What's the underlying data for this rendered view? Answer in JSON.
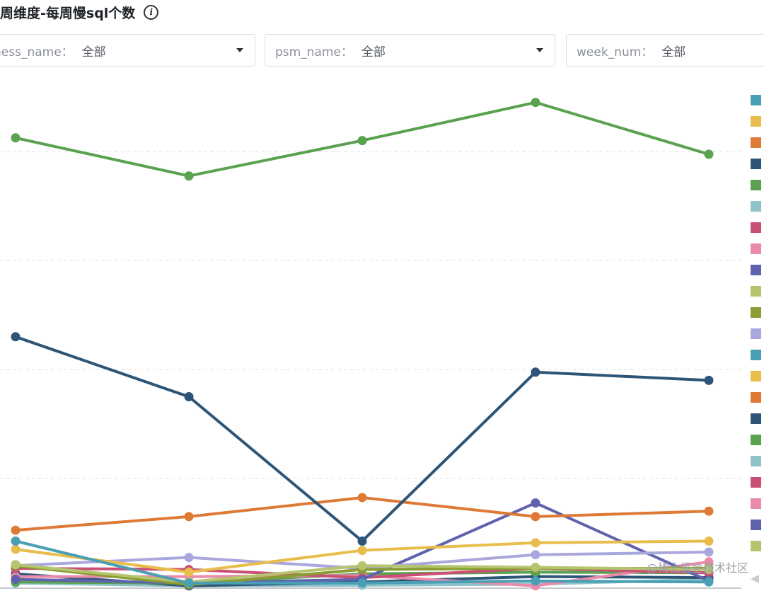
{
  "title": "周维度-每周慢sql个数",
  "info_icon": "info-icon",
  "filters": [
    {
      "label": "ness_name：",
      "value": "全部",
      "icon": "chevron-down-icon"
    },
    {
      "label": "psm_name：",
      "value": "全部",
      "icon": "chevron-down-icon"
    },
    {
      "label": "week_num：",
      "value": "全部"
    }
  ],
  "watermark": "@稀土掘金技术社区",
  "legend": {
    "colors": [
      "#4a9fb5",
      "#e9bd4c",
      "#de7a35",
      "#2d5577",
      "#5aa150",
      "#8fc3ca",
      "#c95074",
      "#e98aab",
      "#5f63ad",
      "#b5c46e",
      "#8a9c32",
      "#a9a7dd",
      "#4a9fb5",
      "#e9bd4c",
      "#de7a35",
      "#2d5577",
      "#5aa150",
      "#8fc3ca",
      "#c95074",
      "#e98aab",
      "#5f63ad",
      "#b5c46e"
    ],
    "scroll_icon": "caret-left-icon"
  },
  "chart_data": {
    "type": "line",
    "x": [
      "",
      "",
      "",
      "",
      ""
    ],
    "ylim": [
      0,
      100
    ],
    "grid": true,
    "legend_placement": "right",
    "series": [
      {
        "color": "#5aa150",
        "values": [
          82.5,
          75.5,
          82.0,
          89.0,
          79.5
        ]
      },
      {
        "color": "#2d5577",
        "values": [
          46.0,
          35.0,
          8.5,
          39.5,
          38.0
        ]
      },
      {
        "color": "#de7a35",
        "values": [
          10.5,
          13.0,
          16.5,
          13.0,
          14.0
        ]
      },
      {
        "color": "#4a9fb5",
        "values": [
          8.5,
          0.8,
          0.8,
          1.2,
          1.0
        ]
      },
      {
        "color": "#e9bd4c",
        "values": [
          7.0,
          2.8,
          6.8,
          8.2,
          8.5
        ]
      },
      {
        "color": "#b5c46e",
        "values": [
          4.2,
          1.0,
          4.0,
          3.7,
          3.3
        ]
      },
      {
        "color": "#8a9c32",
        "values": [
          4.0,
          0.5,
          3.3,
          3.5,
          3.5
        ]
      },
      {
        "color": "#a9a7dd",
        "values": [
          4.0,
          5.5,
          3.5,
          6.0,
          6.5
        ]
      },
      {
        "color": "#5f63ad",
        "values": [
          1.5,
          0.8,
          1.5,
          15.5,
          1.2
        ]
      },
      {
        "color": "#c95074",
        "values": [
          3.5,
          3.3,
          1.8,
          3.5,
          2.7
        ]
      },
      {
        "color": "#e98aab",
        "values": [
          2.0,
          2.0,
          2.2,
          0.3,
          4.7
        ]
      },
      {
        "color": "#5aa150",
        "values": [
          1.0,
          0.8,
          2.5,
          2.8,
          2.7
        ]
      },
      {
        "color": "#2d5577",
        "values": [
          2.5,
          0.3,
          1.0,
          2.0,
          1.8
        ]
      },
      {
        "color": "#8fc3ca",
        "values": [
          0.8,
          0.3,
          0.4,
          0.6,
          1.5
        ]
      }
    ]
  }
}
